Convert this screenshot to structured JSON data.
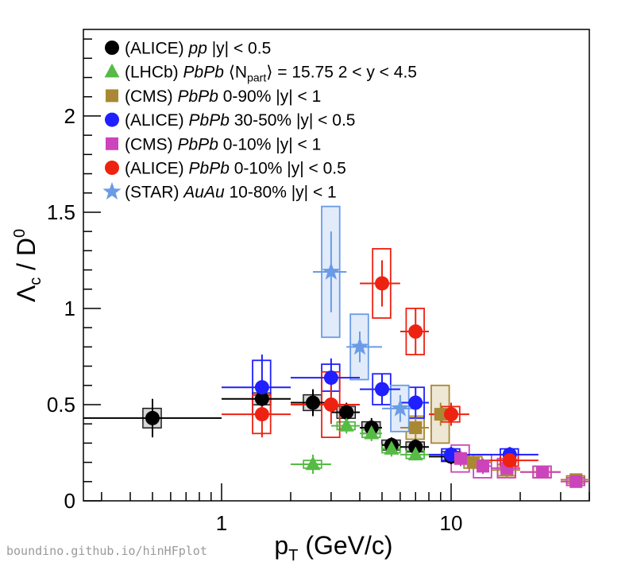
{
  "chart_data": {
    "type": "scatter",
    "title": "",
    "xlabel": "p_T (GeV/c)",
    "ylabel": "Λ_c / D^0",
    "xscale": "log",
    "xlim": [
      0.25,
      40
    ],
    "ylim": [
      0,
      2.45
    ],
    "xticks": [
      1,
      10
    ],
    "yticks": [
      0,
      0.5,
      1,
      1.5,
      2
    ],
    "grid": false,
    "legend_position": "top-left",
    "series": [
      {
        "key": "alice_pp",
        "name": "(ALICE) pp |y| < 0.5",
        "legend": {
          "exp": "(ALICE) ",
          "coll": "pp",
          "sel": " |y| < 0.5"
        },
        "marker": "circle",
        "color": "#000000",
        "points": [
          {
            "x": 0.5,
            "y": 0.43,
            "xlo": 0.1,
            "xhi": 1,
            "err": 0.1,
            "sys": 0.05
          },
          {
            "x": 1.5,
            "y": 0.53,
            "xlo": 1,
            "xhi": 2,
            "err": 0.1,
            "sys": 0.03
          },
          {
            "x": 2.5,
            "y": 0.51,
            "xlo": 2,
            "xhi": 3,
            "err": 0.07,
            "sys": 0.04
          },
          {
            "x": 3.5,
            "y": 0.46,
            "xlo": 3,
            "xhi": 4,
            "err": 0.05,
            "sys": 0.03
          },
          {
            "x": 4.5,
            "y": 0.38,
            "xlo": 4,
            "xhi": 5,
            "err": 0.05,
            "sys": 0.03
          },
          {
            "x": 5.5,
            "y": 0.29,
            "xlo": 5,
            "xhi": 6,
            "err": 0.04,
            "sys": 0.025
          },
          {
            "x": 7,
            "y": 0.28,
            "xlo": 6,
            "xhi": 8,
            "err": 0.04,
            "sys": 0.025
          },
          {
            "x": 10,
            "y": 0.23,
            "xlo": 8,
            "xhi": 12,
            "err": 0.04,
            "sys": 0.025
          }
        ]
      },
      {
        "key": "lhcb_pbpb",
        "name": "(LHCb) PbPb ⟨N_part⟩ = 15.75 2 < y < 4.5",
        "legend": {
          "exp": "(LHCb) ",
          "coll": "PbPb",
          "sel": " ⟨N",
          "sub": "part",
          "sel2": "⟩ = 15.75 2 < y < 4.5"
        },
        "marker": "triangle",
        "color": "#55bb44",
        "points": [
          {
            "x": 2.5,
            "y": 0.19,
            "xlo": 2,
            "xhi": 3,
            "err": 0.05,
            "sys": 0.02
          },
          {
            "x": 3.5,
            "y": 0.39,
            "xlo": 3,
            "xhi": 4,
            "err": 0.04,
            "sys": 0.02
          },
          {
            "x": 4.5,
            "y": 0.35,
            "xlo": 4,
            "xhi": 5,
            "err": 0.04,
            "sys": 0.02
          },
          {
            "x": 5.5,
            "y": 0.27,
            "xlo": 5,
            "xhi": 6,
            "err": 0.04,
            "sys": 0.02
          },
          {
            "x": 7,
            "y": 0.24,
            "xlo": 6,
            "xhi": 8,
            "err": 0.03,
            "sys": 0.02
          }
        ]
      },
      {
        "key": "cms_pbpb_090",
        "name": "(CMS) PbPb 0-90% |y| < 1",
        "legend": {
          "exp": "(CMS) ",
          "coll": "PbPb",
          "sel": " 0-90% |y| < 1"
        },
        "marker": "square",
        "color": "#aa8833",
        "points": [
          {
            "x": 7,
            "y": 0.38,
            "xlo": 6,
            "xhi": 8,
            "err": 0.06,
            "sys": 0.06
          },
          {
            "x": 9,
            "y": 0.45,
            "xlo": 8,
            "xhi": 10,
            "err": 0.06,
            "sys": 0.15
          },
          {
            "x": 12.5,
            "y": 0.2,
            "xlo": 10,
            "xhi": 15,
            "err": 0.04,
            "sys": 0.03
          },
          {
            "x": 17.5,
            "y": 0.16,
            "xlo": 15,
            "xhi": 20,
            "err": 0.04,
            "sys": 0.03
          },
          {
            "x": 25,
            "y": 0.15,
            "xlo": 20,
            "xhi": 30,
            "err": 0.03,
            "sys": 0.03
          },
          {
            "x": 35,
            "y": 0.11,
            "xlo": 30,
            "xhi": 40,
            "err": 0.02,
            "sys": 0.02
          }
        ]
      },
      {
        "key": "alice_pbpb_3050",
        "name": "(ALICE) PbPb 30-50% |y| < 0.5",
        "legend": {
          "exp": "(ALICE) ",
          "coll": "PbPb",
          "sel": " 30-50% |y| < 0.5"
        },
        "marker": "circle",
        "color": "#1f1fff",
        "points": [
          {
            "x": 1.5,
            "y": 0.59,
            "xlo": 1,
            "xhi": 2,
            "err": 0.17,
            "sys": 0.14
          },
          {
            "x": 3,
            "y": 0.64,
            "xlo": 2,
            "xhi": 4,
            "err": 0.1,
            "sys": 0.07
          },
          {
            "x": 5,
            "y": 0.58,
            "xlo": 4,
            "xhi": 6,
            "err": 0.08,
            "sys": 0.08
          },
          {
            "x": 7,
            "y": 0.51,
            "xlo": 6,
            "xhi": 8,
            "err": 0.08,
            "sys": 0.08
          },
          {
            "x": 10,
            "y": 0.24,
            "xlo": 8,
            "xhi": 12,
            "err": 0.04,
            "sys": 0.03
          },
          {
            "x": 18,
            "y": 0.24,
            "xlo": 12,
            "xhi": 24,
            "err": 0.04,
            "sys": 0.03
          }
        ]
      },
      {
        "key": "cms_pbpb_010",
        "name": "(CMS) PbPb 0-10% |y| < 1",
        "legend": {
          "exp": "(CMS) ",
          "coll": "PbPb",
          "sel": " 0-10% |y| < 1"
        },
        "marker": "square",
        "color": "#cc44bb",
        "points": [
          {
            "x": 11,
            "y": 0.22,
            "xlo": 10,
            "xhi": 12.5,
            "err": 0.04,
            "sys": 0.07
          },
          {
            "x": 13.75,
            "y": 0.18,
            "xlo": 12.5,
            "xhi": 15,
            "err": 0.04,
            "sys": 0.06
          },
          {
            "x": 17.5,
            "y": 0.17,
            "xlo": 15,
            "xhi": 20,
            "err": 0.04,
            "sys": 0.05
          },
          {
            "x": 25,
            "y": 0.15,
            "xlo": 20,
            "xhi": 30,
            "err": 0.03,
            "sys": 0.03
          },
          {
            "x": 35,
            "y": 0.1,
            "xlo": 30,
            "xhi": 40,
            "err": 0.02,
            "sys": 0.02
          }
        ]
      },
      {
        "key": "alice_pbpb_010",
        "name": "(ALICE) PbPb 0-10% |y| < 0.5",
        "legend": {
          "exp": "(ALICE) ",
          "coll": "PbPb",
          "sel": " 0-10% |y| < 0.5"
        },
        "marker": "circle",
        "color": "#ee2211",
        "points": [
          {
            "x": 1.5,
            "y": 0.45,
            "xlo": 1,
            "xhi": 2,
            "err": 0.12,
            "sys": 0.1
          },
          {
            "x": 3,
            "y": 0.5,
            "xlo": 2,
            "xhi": 4,
            "err": 0.1,
            "sys": 0.17
          },
          {
            "x": 5,
            "y": 1.13,
            "xlo": 4,
            "xhi": 6,
            "err": 0.12,
            "sys": 0.18
          },
          {
            "x": 7,
            "y": 0.88,
            "xlo": 6,
            "xhi": 8,
            "err": 0.12,
            "sys": 0.12
          },
          {
            "x": 10,
            "y": 0.45,
            "xlo": 8,
            "xhi": 12,
            "err": 0.06,
            "sys": 0.04
          },
          {
            "x": 18,
            "y": 0.21,
            "xlo": 12,
            "xhi": 24,
            "err": 0.04,
            "sys": 0.03
          }
        ]
      },
      {
        "key": "star_auau",
        "name": "(STAR) AuAu 10-80% |y| < 1",
        "legend": {
          "exp": "(STAR) ",
          "coll": "AuAu",
          "sel": " 10-80% |y| < 1"
        },
        "marker": "star",
        "color": "#6a9be6",
        "points": [
          {
            "x": 3,
            "y": 1.19,
            "xlo": 2.5,
            "xhi": 3.5,
            "err": 0.21,
            "sys": 0.34
          },
          {
            "x": 4,
            "y": 0.8,
            "xlo": 3.5,
            "xhi": 5,
            "err": 0.08,
            "sys": 0.17
          },
          {
            "x": 6,
            "y": 0.48,
            "xlo": 5,
            "xhi": 7,
            "err": 0.07,
            "sys": 0.12
          }
        ]
      }
    ]
  },
  "credit": "boundino.github.io/hinHFplot"
}
